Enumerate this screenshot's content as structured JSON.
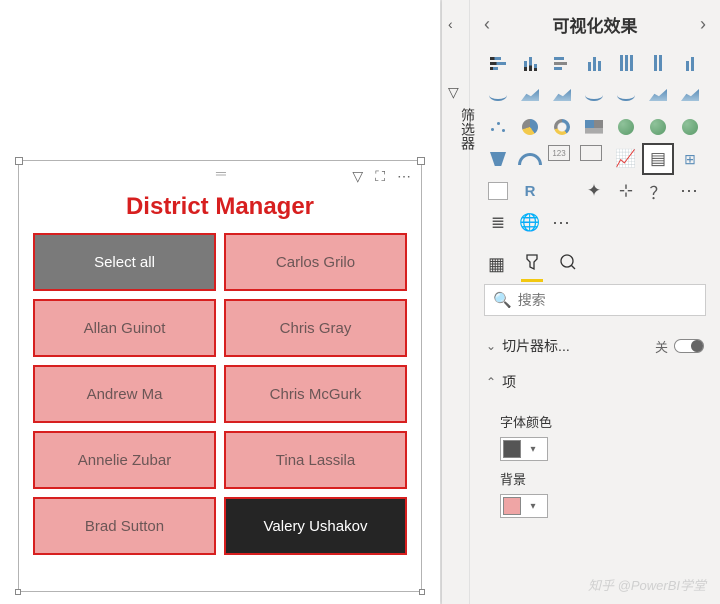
{
  "slicer": {
    "title": "District Manager",
    "title_color": "#d71f1f",
    "border_color": "#d71f1f",
    "fill_color": "#efa5a5",
    "selected_fill": "#252525",
    "selectall_fill": "#7a7a7a",
    "items": [
      {
        "label": "Select all",
        "state": "selectall"
      },
      {
        "label": "Carlos Grilo",
        "state": "normal"
      },
      {
        "label": "Allan Guinot",
        "state": "normal"
      },
      {
        "label": "Chris Gray",
        "state": "normal"
      },
      {
        "label": "Andrew Ma",
        "state": "normal"
      },
      {
        "label": "Chris McGurk",
        "state": "normal"
      },
      {
        "label": "Annelie Zubar",
        "state": "normal"
      },
      {
        "label": "Tina Lassila",
        "state": "normal"
      },
      {
        "label": "Brad Sutton",
        "state": "normal"
      },
      {
        "label": "Valery Ushakov",
        "state": "selected"
      }
    ]
  },
  "filter_rail": {
    "label": "筛选器"
  },
  "viz_pane": {
    "title": "可视化效果",
    "search_placeholder": "搜索",
    "gallery": [
      "stacked-bar",
      "stacked-column",
      "clustered-bar",
      "clustered-column",
      "100-bar",
      "100-column",
      "combo",
      "line",
      "area",
      "stacked-area",
      "line-stacked",
      "line-clustered",
      "ribbon",
      "waterfall",
      "scatter",
      "pie",
      "donut",
      "treemap",
      "map",
      "filled-map",
      "shape-map",
      "funnel",
      "gauge",
      "card",
      "multi-card",
      "kpi",
      "slicer",
      "table",
      "matrix",
      "r-visual",
      "py-visual",
      "key-influencers",
      "decomposition",
      "qa",
      "more",
      "paginated",
      "globe",
      "ellipsis"
    ],
    "props": {
      "slicer_header": {
        "label": "切片器标...",
        "toggle_label": "关"
      },
      "items_section": {
        "label": "项"
      },
      "font_color": {
        "label": "字体颜色",
        "value": "#555555"
      },
      "background": {
        "label": "背景",
        "value": "#efa5a5"
      }
    }
  },
  "watermark": "知乎 @PowerBI学堂"
}
